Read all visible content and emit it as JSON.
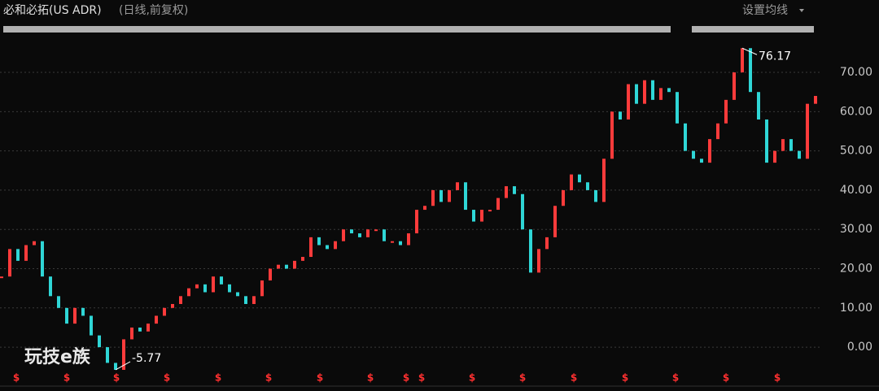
{
  "header": {
    "title": "必和必拓(US ADR)",
    "subtitle": "(日线,前复权)",
    "settings": "设置均线"
  },
  "watermark": "玩技e族",
  "dividend_markers": [
    "$",
    "$",
    "$",
    "$",
    "$",
    "$",
    "$",
    "$",
    "$",
    "$",
    "$",
    "$",
    "$",
    "$",
    "$",
    "$",
    "$"
  ],
  "chart_data": {
    "type": "line",
    "values": [
      18,
      25,
      22,
      26,
      27,
      18,
      13,
      10,
      6,
      10,
      8,
      3,
      0,
      -4,
      -5.77,
      2,
      5,
      4,
      6,
      8,
      10,
      11,
      13,
      15,
      16,
      14,
      18,
      16,
      14,
      13,
      11,
      13,
      17,
      20,
      21,
      20,
      22,
      23,
      28,
      26,
      25,
      27,
      30,
      29,
      28,
      30,
      30,
      27,
      27,
      26,
      29,
      35,
      36,
      40,
      37,
      40,
      42,
      35,
      32,
      35,
      35,
      38,
      41,
      39,
      30,
      19,
      25,
      28,
      36,
      40,
      44,
      42,
      40,
      37,
      48,
      60,
      58,
      67,
      62,
      68,
      63,
      66,
      65,
      57,
      50,
      48,
      47,
      53,
      57,
      63,
      70,
      76.17,
      65,
      58,
      47,
      50,
      53,
      50,
      48,
      62,
      64
    ],
    "up_color": "#ff3b3b",
    "down_color": "#2fd6d6",
    "ylim": [
      -6.4,
      78.5
    ],
    "yticks": [
      {
        "value": 0,
        "label": "0.00"
      },
      {
        "value": 10,
        "label": "10.00"
      },
      {
        "value": 20,
        "label": "20.00"
      },
      {
        "value": 30,
        "label": "30.00"
      },
      {
        "value": 40,
        "label": "40.00"
      },
      {
        "value": 50,
        "label": "50.00"
      },
      {
        "value": 60,
        "label": "60.00"
      },
      {
        "value": 70,
        "label": "70.00"
      }
    ],
    "grid": true,
    "annotations": [
      {
        "label": "76.17",
        "value": 76.17
      },
      {
        "label": "-5.77",
        "value": -5.77
      }
    ]
  }
}
